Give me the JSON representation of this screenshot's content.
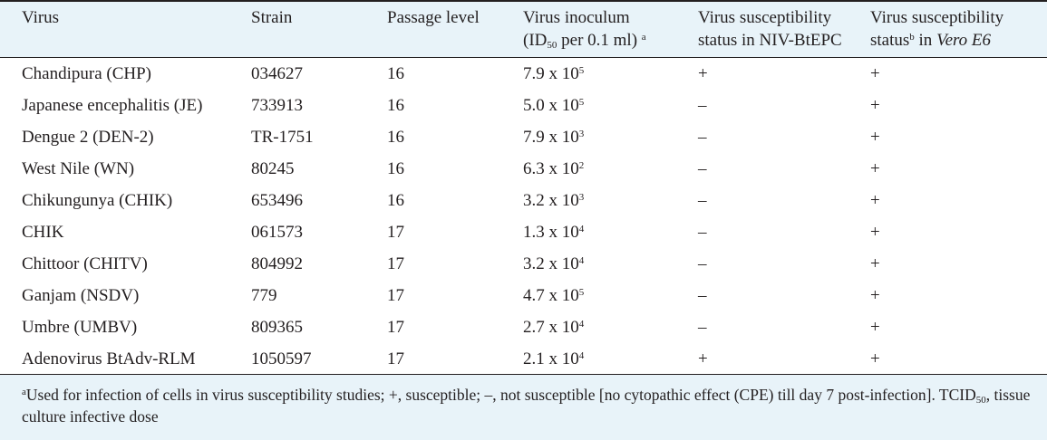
{
  "header": {
    "virus": "Virus",
    "strain": "Strain",
    "passage_level": "Passage level",
    "inoculum_line1": "Virus inoculum",
    "inoculum_line2_pre": "(ID",
    "inoculum_line2_sub": "50",
    "inoculum_line2_post": " per 0.1 ml)",
    "inoculum_sup": "a",
    "niv_line1": "Virus susceptibility",
    "niv_line2": "status in NIV-BtEPC",
    "vero_line1": "Virus susceptibility",
    "vero_line2_pre": "status",
    "vero_sup": "b",
    "vero_line2_mid": " in ",
    "vero_line2_italic": "Vero E6"
  },
  "rows": [
    {
      "virus": "Chandipura (CHP)",
      "strain": "034627",
      "passage": "16",
      "mantissa": "7.9 x 10",
      "exp": "5",
      "niv": "+",
      "vero": "+"
    },
    {
      "virus": "Japanese encephalitis (JE)",
      "strain": "733913",
      "passage": "16",
      "mantissa": "5.0 x 10",
      "exp": "5",
      "niv": "–",
      "vero": "+"
    },
    {
      "virus": "Dengue 2 (DEN-2)",
      "strain": "TR-1751",
      "passage": "16",
      "mantissa": "7.9 x 10",
      "exp": "3",
      "niv": "–",
      "vero": "+"
    },
    {
      "virus": "West Nile (WN)",
      "strain": "80245",
      "passage": "16",
      "mantissa": "6.3 x 10",
      "exp": "2",
      "niv": "–",
      "vero": "+"
    },
    {
      "virus": "Chikungunya (CHIK)",
      "strain": "653496",
      "passage": "16",
      "mantissa": "3.2 x 10",
      "exp": "3",
      "niv": "–",
      "vero": "+"
    },
    {
      "virus": "CHIK",
      "strain": "061573",
      "passage": "17",
      "mantissa": "1.3 x 10",
      "exp": "4",
      "niv": "–",
      "vero": "+"
    },
    {
      "virus": "Chittoor (CHITV)",
      "strain": "804992",
      "passage": "17",
      "mantissa": "3.2 x 10",
      "exp": "4",
      "niv": "–",
      "vero": "+"
    },
    {
      "virus": "Ganjam (NSDV)",
      "strain": "779",
      "passage": "17",
      "mantissa": "4.7 x 10",
      "exp": "5",
      "niv": "–",
      "vero": "+"
    },
    {
      "virus": "Umbre (UMBV)",
      "strain": "809365",
      "passage": "17",
      "mantissa": "2.7 x 10",
      "exp": "4",
      "niv": "–",
      "vero": "+"
    },
    {
      "virus": "Adenovirus BtAdv-RLM",
      "strain": "1050597",
      "passage": "17",
      "mantissa": "2.1 x 10",
      "exp": "4",
      "niv": "+",
      "vero": "+"
    }
  ],
  "footnote": {
    "sup": "a",
    "text1": "Used for infection of cells in virus susceptibility studies; +, susceptible; –, not susceptible [no cytopathic effect (CPE) till day 7 post-infection]. TCID",
    "sub": "50",
    "text2": ", tissue culture infective dose"
  }
}
